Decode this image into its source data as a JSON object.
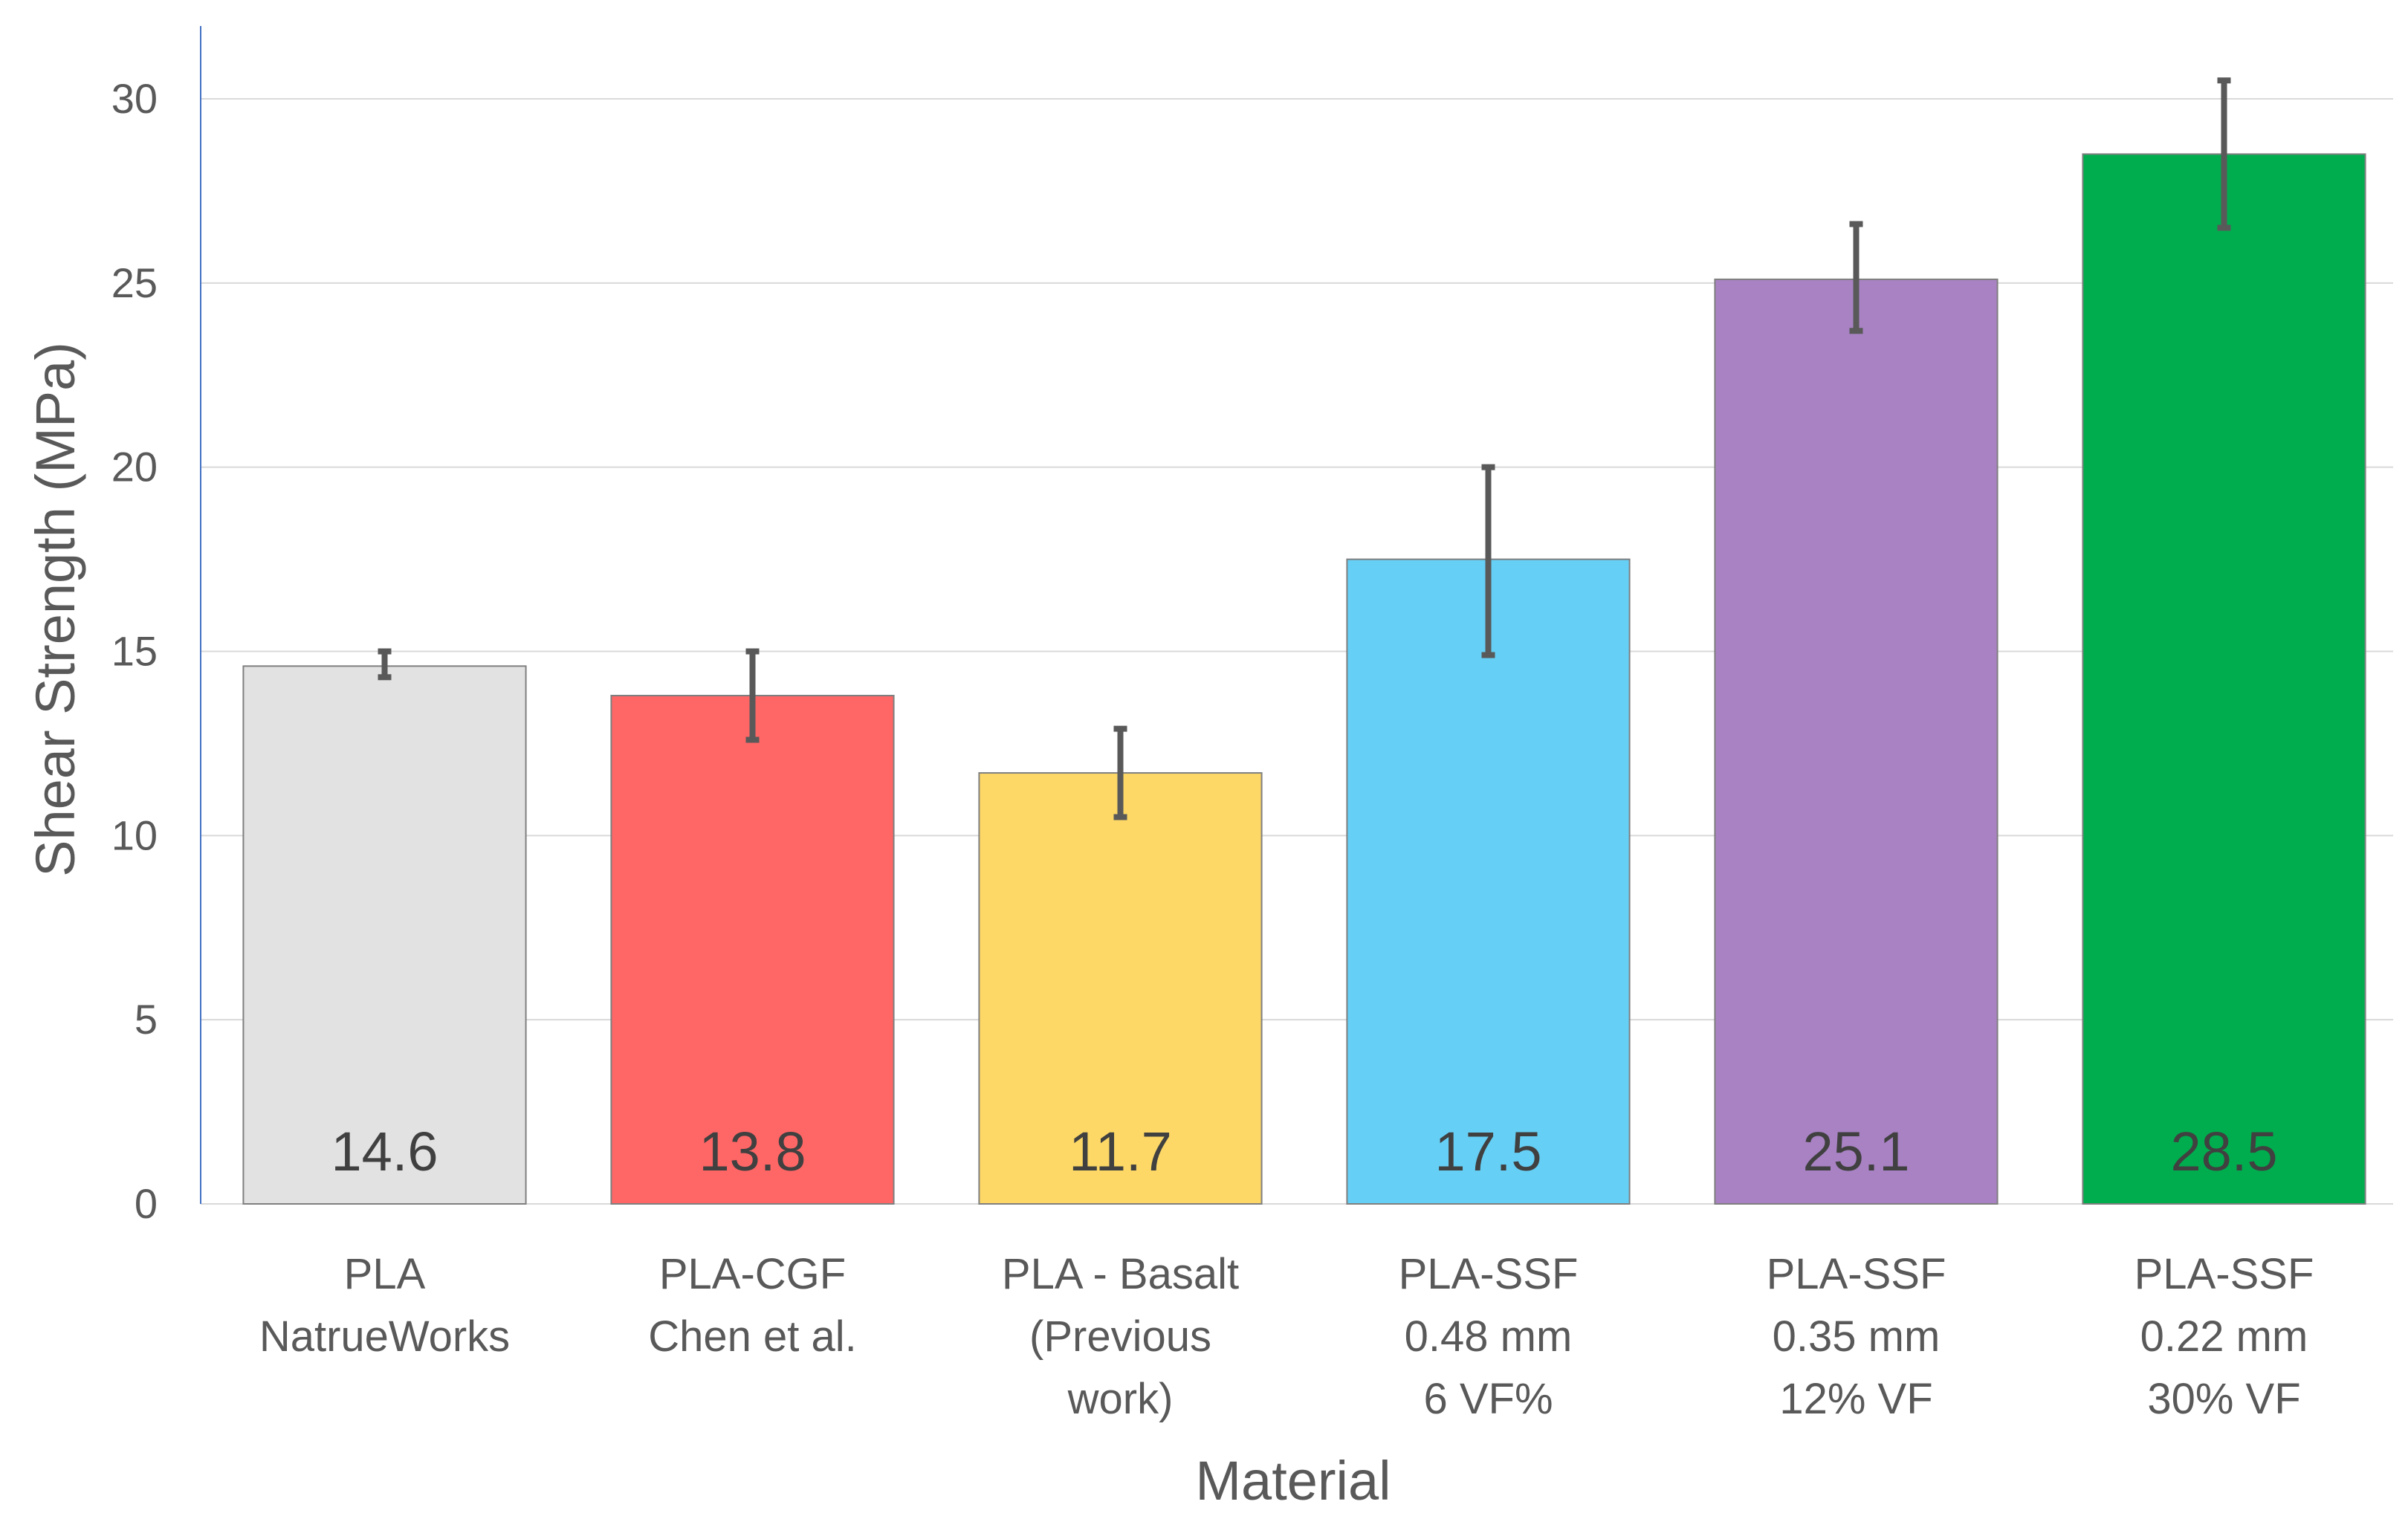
{
  "chart_data": {
    "type": "bar",
    "title": "",
    "xlabel": "Material",
    "ylabel": "Shear Strength (MPa)",
    "ylim": [
      0,
      30
    ],
    "yticks": [
      0,
      5,
      10,
      15,
      20,
      25,
      30
    ],
    "grid": true,
    "categories": [
      [
        "PLA",
        "NatrueWorks"
      ],
      [
        "PLA-CGF",
        "Chen et al."
      ],
      [
        "PLA - Basalt",
        "(Previous",
        "work)"
      ],
      [
        "PLA-SSF",
        "0.48 mm",
        "6 VF%"
      ],
      [
        "PLA-SSF",
        "0.35 mm",
        "12% VF"
      ],
      [
        "PLA-SSF",
        "0.22 mm",
        "30% VF"
      ]
    ],
    "values": [
      14.6,
      13.8,
      11.7,
      17.5,
      25.1,
      28.5
    ],
    "data_labels": [
      "14.6",
      "13.8",
      "11.7",
      "17.5",
      "25.1",
      "28.5"
    ],
    "error_low": [
      14.3,
      12.6,
      10.5,
      14.9,
      23.7,
      26.5
    ],
    "error_high": [
      15.0,
      15.0,
      12.9,
      20.0,
      26.6,
      30.5
    ],
    "colors": [
      "#e2e2e2",
      "#ff6666",
      "#fdd866",
      "#66cff5",
      "#a882c3",
      "#00ad4e"
    ]
  }
}
